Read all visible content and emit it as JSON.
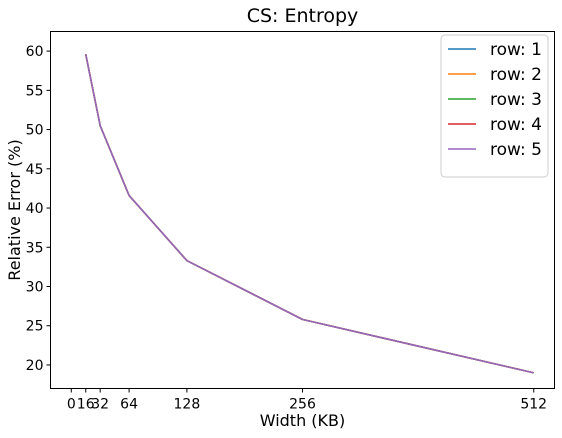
{
  "chart_data": {
    "type": "line",
    "title": "CS: Entropy",
    "xlabel": "Width (KB)",
    "ylabel": "Relative Error (%)",
    "x": [
      16,
      32,
      64,
      128,
      256,
      512
    ],
    "xticks": [
      0,
      16,
      32,
      64,
      128,
      256,
      512
    ],
    "xtick_labels": [
      "0",
      "16",
      "32",
      "64",
      "128",
      "256",
      "512"
    ],
    "yticks": [
      20,
      25,
      30,
      35,
      40,
      45,
      50,
      55,
      60
    ],
    "ytick_labels": [
      "20",
      "25",
      "30",
      "35",
      "40",
      "45",
      "50",
      "55",
      "60"
    ],
    "xlim": [
      -23,
      535
    ],
    "ylim": [
      17,
      62.5
    ],
    "grid": false,
    "legend_position": "top-right",
    "series": [
      {
        "name": "row: 1",
        "color": "#1f77b4",
        "values": [
          59.6,
          50.5,
          41.6,
          33.3,
          25.8,
          19.0
        ]
      },
      {
        "name": "row: 2",
        "color": "#ff7f0e",
        "values": [
          59.6,
          50.5,
          41.6,
          33.3,
          25.8,
          19.0
        ]
      },
      {
        "name": "row: 3",
        "color": "#2ca02c",
        "values": [
          59.6,
          50.5,
          41.6,
          33.3,
          25.8,
          19.0
        ]
      },
      {
        "name": "row: 4",
        "color": "#d62728",
        "values": [
          59.6,
          50.5,
          41.6,
          33.3,
          25.8,
          19.0
        ]
      },
      {
        "name": "row: 5",
        "color": "#9467bd",
        "values": [
          59.6,
          50.5,
          41.6,
          33.3,
          25.8,
          19.0
        ]
      }
    ]
  }
}
